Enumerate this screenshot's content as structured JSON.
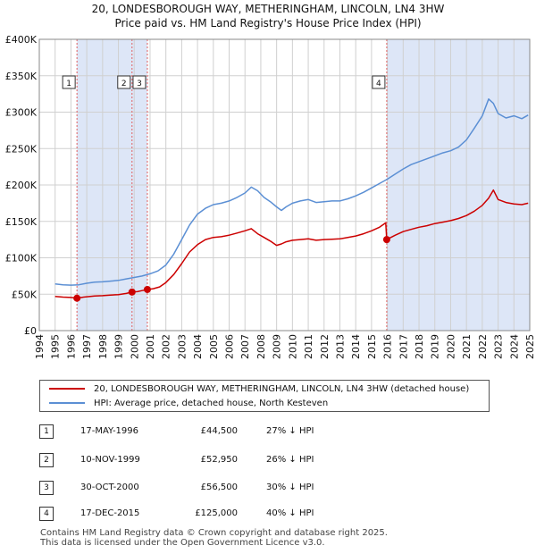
{
  "chart_data": {
    "type": "line",
    "title": "20, LONDESBOROUGH WAY, METHERINGHAM, LINCOLN, LN4 3HW",
    "subtitle": "Price paid vs. HM Land Registry's House Price Index (HPI)",
    "xlabel": "",
    "ylabel": "",
    "xlim": [
      1994,
      2025
    ],
    "ylim": [
      0,
      400000
    ],
    "yticks": [
      0,
      50000,
      100000,
      150000,
      200000,
      250000,
      300000,
      350000,
      400000
    ],
    "ytick_labels": [
      "£0",
      "£50K",
      "£100K",
      "£150K",
      "£200K",
      "£250K",
      "£300K",
      "£350K",
      "£400K"
    ],
    "xtick_labels": [
      "1994",
      "1995",
      "1996",
      "1997",
      "1998",
      "1999",
      "2000",
      "2001",
      "2002",
      "2003",
      "2004",
      "2005",
      "2006",
      "2007",
      "2008",
      "2009",
      "2010",
      "2011",
      "2012",
      "2013",
      "2014",
      "2015",
      "2016",
      "2017",
      "2018",
      "2019",
      "2020",
      "2021",
      "2022",
      "2023",
      "2024",
      "2025"
    ],
    "grid": true,
    "series": [
      {
        "name": "20, LONDESBOROUGH WAY, METHERINGHAM, LINCOLN, LN4 3HW (detached house)",
        "color": "#cc0000",
        "x": [
          1995.0,
          1995.5,
          1996.0,
          1996.38,
          1996.8,
          1997.5,
          1998.0,
          1998.5,
          1999.0,
          1999.5,
          1999.86,
          2000.2,
          2000.5,
          2000.83,
          2001.2,
          2001.6,
          2002.0,
          2002.5,
          2003.0,
          2003.5,
          2004.0,
          2004.5,
          2005.0,
          2005.5,
          2006.0,
          2006.5,
          2007.0,
          2007.4,
          2007.8,
          2008.2,
          2008.6,
          2009.0,
          2009.3,
          2009.6,
          2010.0,
          2010.5,
          2011.0,
          2011.5,
          2012.0,
          2012.5,
          2013.0,
          2013.5,
          2014.0,
          2014.5,
          2015.0,
          2015.5,
          2015.9,
          2015.96,
          2016.5,
          2017.0,
          2017.5,
          2018.0,
          2018.5,
          2019.0,
          2019.5,
          2020.0,
          2020.5,
          2021.0,
          2021.5,
          2022.0,
          2022.4,
          2022.7,
          2023.0,
          2023.5,
          2024.0,
          2024.5,
          2024.9
        ],
        "values": [
          47000,
          46000,
          45500,
          44500,
          46000,
          47500,
          48000,
          48800,
          49500,
          51000,
          52950,
          53500,
          55000,
          56500,
          57500,
          60000,
          66000,
          77000,
          92000,
          108000,
          118000,
          125000,
          128000,
          129000,
          131000,
          134000,
          137000,
          140000,
          133000,
          128000,
          123000,
          117000,
          119000,
          122000,
          124000,
          125000,
          126000,
          124000,
          125000,
          125500,
          126000,
          128000,
          130000,
          133000,
          137000,
          142000,
          148000,
          125000,
          131000,
          136000,
          139000,
          142000,
          144000,
          147000,
          149000,
          151000,
          154000,
          158000,
          164000,
          172000,
          182000,
          193000,
          180000,
          176000,
          174000,
          173000,
          175000
        ]
      },
      {
        "name": "HPI: Average price, detached house, North Kesteven",
        "color": "#5b8fd4",
        "x": [
          1995.0,
          1995.5,
          1996.0,
          1996.5,
          1997.0,
          1997.5,
          1998.0,
          1998.5,
          1999.0,
          1999.5,
          2000.0,
          2000.5,
          2001.0,
          2001.5,
          2002.0,
          2002.5,
          2003.0,
          2003.5,
          2004.0,
          2004.5,
          2005.0,
          2005.5,
          2006.0,
          2006.5,
          2007.0,
          2007.4,
          2007.8,
          2008.2,
          2008.6,
          2009.0,
          2009.3,
          2009.6,
          2010.0,
          2010.5,
          2011.0,
          2011.5,
          2012.0,
          2012.5,
          2013.0,
          2013.5,
          2014.0,
          2014.5,
          2015.0,
          2015.5,
          2016.0,
          2016.5,
          2017.0,
          2017.5,
          2018.0,
          2018.5,
          2019.0,
          2019.5,
          2020.0,
          2020.5,
          2021.0,
          2021.5,
          2022.0,
          2022.4,
          2022.7,
          2023.0,
          2023.5,
          2024.0,
          2024.5,
          2024.9
        ],
        "values": [
          64000,
          63000,
          62500,
          63000,
          65000,
          66500,
          67000,
          68000,
          69000,
          71000,
          73000,
          75000,
          78000,
          82000,
          90000,
          105000,
          125000,
          145000,
          160000,
          168000,
          173000,
          175000,
          178000,
          183000,
          189000,
          197000,
          192000,
          183000,
          177000,
          170000,
          165000,
          170000,
          175000,
          178000,
          180000,
          176000,
          177000,
          178000,
          178000,
          181000,
          185000,
          190000,
          196000,
          202000,
          208000,
          215000,
          222000,
          228000,
          232000,
          236000,
          240000,
          244000,
          247000,
          252000,
          262000,
          278000,
          295000,
          318000,
          312000,
          298000,
          292000,
          295000,
          291000,
          296000
        ]
      }
    ],
    "sales": [
      {
        "label": "1",
        "x": 1996.38,
        "price": 44500
      },
      {
        "label": "2",
        "x": 1999.86,
        "price": 52950
      },
      {
        "label": "3",
        "x": 2000.83,
        "price": 56500
      },
      {
        "label": "4",
        "x": 2015.96,
        "price": 125000
      }
    ]
  },
  "legend": {
    "property": "20, LONDESBOROUGH WAY, METHERINGHAM, LINCOLN, LN4 3HW (detached house)",
    "hpi": "HPI: Average price, detached house, North Kesteven"
  },
  "table": [
    {
      "num": "1",
      "date": "17-MAY-1996",
      "price": "£44,500",
      "hpi": "27% ↓ HPI"
    },
    {
      "num": "2",
      "date": "10-NOV-1999",
      "price": "£52,950",
      "hpi": "26% ↓ HPI"
    },
    {
      "num": "3",
      "date": "30-OCT-2000",
      "price": "£56,500",
      "hpi": "30% ↓ HPI"
    },
    {
      "num": "4",
      "date": "17-DEC-2015",
      "price": "£125,000",
      "hpi": "40% ↓ HPI"
    }
  ],
  "footer": {
    "line1": "Contains HM Land Registry data © Crown copyright and database right 2025.",
    "line2": "This data is licensed under the Open Government Licence v3.0."
  },
  "colors": {
    "property": "#cc0000",
    "hpi": "#5b8fd4",
    "shade": "#dde6f7",
    "grid": "#d0d0d0"
  }
}
